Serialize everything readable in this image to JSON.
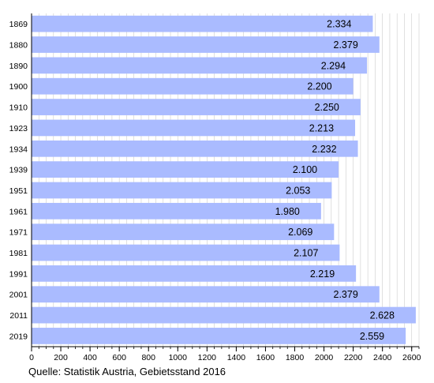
{
  "source_note": "Quelle: Statistik Austria, Gebietsstand 2016",
  "colors": {
    "bar_fill": "#aabbff",
    "grid": "#cccccc",
    "axis": "#000000",
    "background": "#ffffff"
  },
  "chart_data": {
    "type": "bar",
    "orientation": "horizontal",
    "title": "",
    "xlabel": "",
    "ylabel": "",
    "categories": [
      "1869",
      "1880",
      "1890",
      "1900",
      "1910",
      "1923",
      "1934",
      "1939",
      "1951",
      "1961",
      "1971",
      "1981",
      "1991",
      "2001",
      "2011",
      "2019"
    ],
    "values": [
      2334,
      2379,
      2294,
      2200,
      2250,
      2213,
      2232,
      2100,
      2053,
      1980,
      2069,
      2107,
      2219,
      2379,
      2628,
      2559
    ],
    "data_labels": [
      "2.334",
      "2.379",
      "2.294",
      "2.200",
      "2.250",
      "2.213",
      "2.232",
      "2.100",
      "2.053",
      "1.980",
      "2.069",
      "2.107",
      "2.219",
      "2.379",
      "2.628",
      "2.559"
    ],
    "xlim": [
      0,
      2650
    ],
    "x_ticks": [
      0,
      200,
      400,
      600,
      800,
      1000,
      1200,
      1400,
      1600,
      1800,
      2000,
      2200,
      2400,
      2600
    ],
    "x_minor_step": 50,
    "grid": true,
    "legend": false
  }
}
